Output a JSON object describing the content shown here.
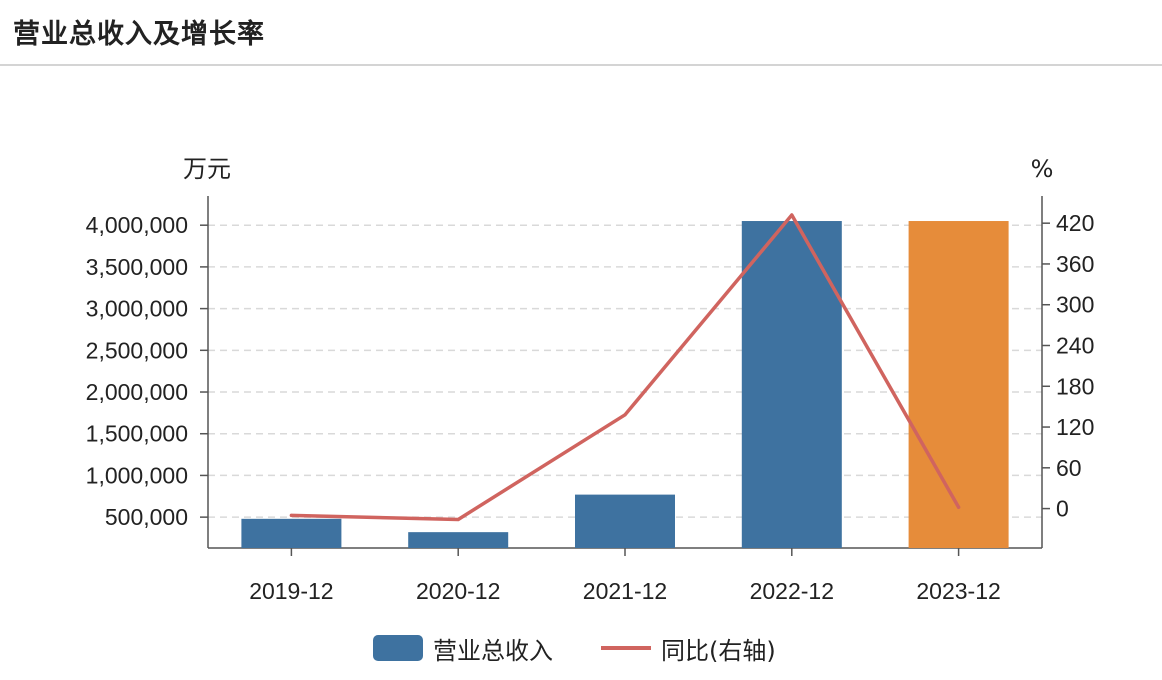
{
  "header": {
    "title": "营业总收入及增长率"
  },
  "chart_data": {
    "type": "bar",
    "categories": [
      "2019-12",
      "2020-12",
      "2021-12",
      "2022-12",
      "2023-12"
    ],
    "series": [
      {
        "name": "营业总收入",
        "kind": "bar",
        "axis": "left",
        "values": [
          480000,
          320000,
          770000,
          4050000,
          4050000
        ],
        "colors": [
          "#3e72a0",
          "#3e72a0",
          "#3e72a0",
          "#3e72a0",
          "#e68c3a"
        ]
      },
      {
        "name": "同比(右轴)",
        "kind": "line",
        "axis": "right",
        "values": [
          -10,
          -16,
          138,
          432,
          2
        ],
        "color": "#d0645f"
      }
    ],
    "y_left": {
      "unit": "万元",
      "ticks": [
        500000,
        1000000,
        1500000,
        2000000,
        2500000,
        3000000,
        3500000,
        4000000
      ],
      "tick_labels": [
        "500,000",
        "1,000,000",
        "1,500,000",
        "2,000,000",
        "2,500,000",
        "3,000,000",
        "3,500,000",
        "4,000,000"
      ],
      "range": [
        130000,
        4350000
      ]
    },
    "y_right": {
      "unit": "%",
      "ticks": [
        0,
        60,
        120,
        180,
        240,
        300,
        360,
        420
      ],
      "tick_labels": [
        "0",
        "60",
        "120",
        "180",
        "240",
        "300",
        "360",
        "420"
      ],
      "range": [
        -58,
        460
      ]
    },
    "grid": true,
    "legend_placement": "bottom"
  },
  "legend": [
    {
      "label": "营业总收入",
      "color": "#3e72a0",
      "kind": "bar"
    },
    {
      "label": "同比(右轴)",
      "color": "#d0645f",
      "kind": "line"
    }
  ]
}
